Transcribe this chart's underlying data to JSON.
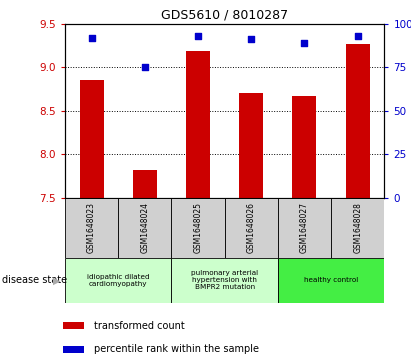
{
  "title": "GDS5610 / 8010287",
  "samples": [
    "GSM1648023",
    "GSM1648024",
    "GSM1648025",
    "GSM1648026",
    "GSM1648027",
    "GSM1648028"
  ],
  "bar_values": [
    8.85,
    7.82,
    9.18,
    8.7,
    8.67,
    9.27
  ],
  "percentile_values": [
    92,
    75,
    93,
    91,
    89,
    93
  ],
  "ylim_left": [
    7.5,
    9.5
  ],
  "ylim_right": [
    0,
    100
  ],
  "yticks_left": [
    7.5,
    8.0,
    8.5,
    9.0,
    9.5
  ],
  "yticks_right": [
    0,
    25,
    50,
    75,
    100
  ],
  "bar_color": "#cc0000",
  "dot_color": "#0000cc",
  "disease_groups": [
    {
      "label": "idiopathic dilated\ncardiomyopathy",
      "start": 0,
      "end": 1,
      "color": "#ccffcc"
    },
    {
      "label": "pulmonary arterial\nhypertension with\nBMPR2 mutation",
      "start": 2,
      "end": 3,
      "color": "#ccffcc"
    },
    {
      "label": "healthy control",
      "start": 4,
      "end": 5,
      "color": "#44ee44"
    }
  ],
  "legend_bar_label": "transformed count",
  "legend_dot_label": "percentile rank within the sample",
  "tick_color_left": "#cc0000",
  "tick_color_right": "#0000cc",
  "label_cell_color": "#d0d0d0",
  "disease_state_label": "disease state",
  "arrow_char": "▶"
}
